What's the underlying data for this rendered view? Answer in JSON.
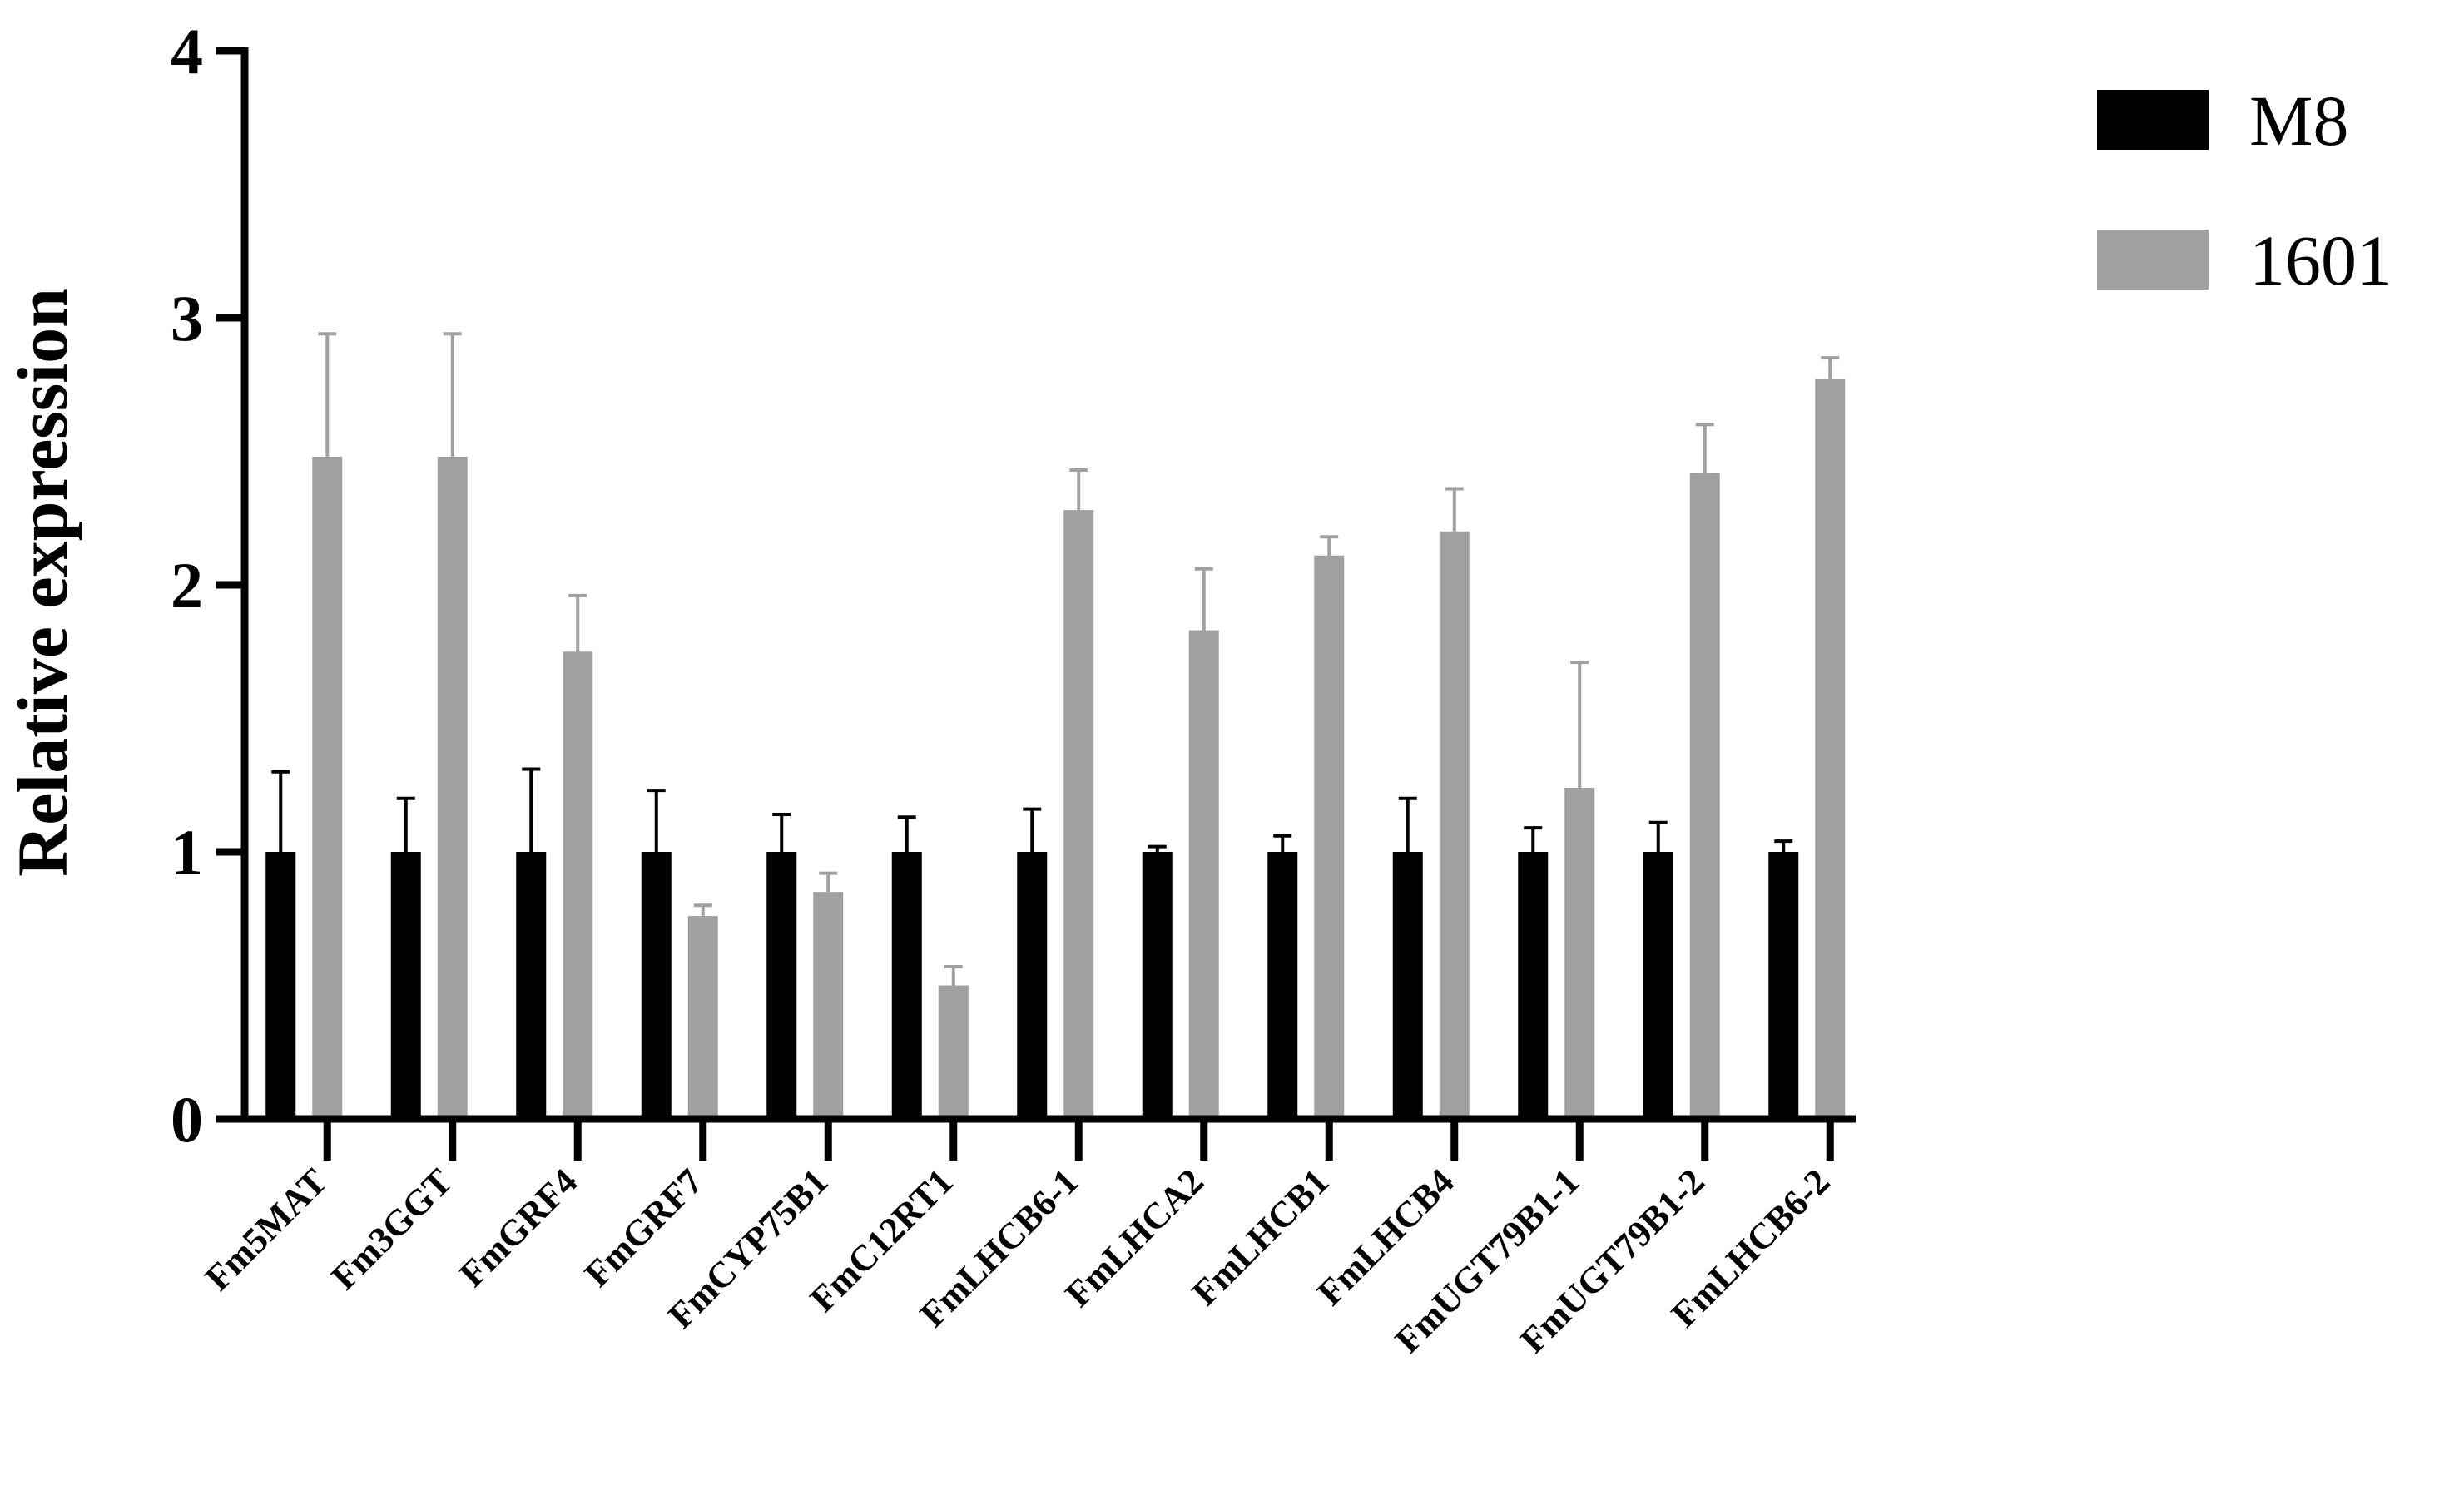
{
  "chart_data": {
    "type": "bar",
    "title": "",
    "xlabel": "",
    "ylabel": "Relative expression",
    "ylim": [
      0,
      4
    ],
    "yticks": [
      "0",
      "1",
      "2",
      "3",
      "4"
    ],
    "grid": false,
    "legend_position": "top-right",
    "categories": [
      "Fm5MAT",
      "Fm3GGT",
      "FmGRF4",
      "FmGRF7",
      "FmCYP75B1",
      "FmC12RT1",
      "FmLHCB6-1",
      "FmLHCA2",
      "FmLHCB1",
      "FmLHCB4",
      "FmUGT79B1-1",
      "FmUGT79B1-2",
      "FmLHCB6-2"
    ],
    "series": [
      {
        "name": "M8",
        "color": "#000000",
        "values": [
          1.0,
          1.0,
          1.0,
          1.0,
          1.0,
          1.0,
          1.0,
          1.0,
          1.0,
          1.0,
          1.0,
          1.0,
          1.0
        ],
        "errors": [
          0.3,
          0.2,
          0.31,
          0.23,
          0.14,
          0.13,
          0.16,
          0.02,
          0.06,
          0.2,
          0.09,
          0.11,
          0.04
        ]
      },
      {
        "name": "1601",
        "color": "#a0a0a2",
        "values": [
          2.48,
          2.48,
          1.75,
          0.76,
          0.85,
          0.5,
          2.28,
          1.83,
          2.11,
          2.2,
          1.24,
          2.42,
          2.77
        ],
        "errors": [
          0.46,
          0.46,
          0.21,
          0.04,
          0.07,
          0.07,
          0.15,
          0.23,
          0.07,
          0.16,
          0.47,
          0.18,
          0.08
        ]
      }
    ]
  }
}
